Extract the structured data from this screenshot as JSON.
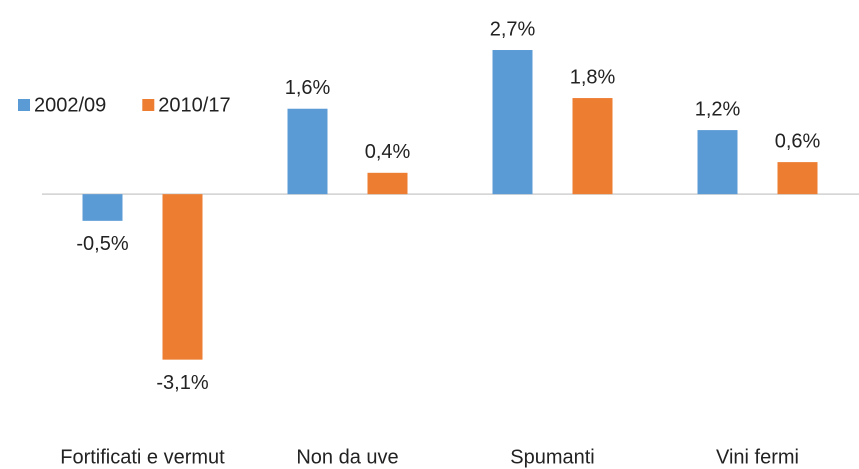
{
  "chart_data": {
    "type": "bar",
    "categories": [
      "Fortificati e vermut",
      "Non da uve",
      "Spumanti",
      "Vini fermi"
    ],
    "series": [
      {
        "name": "2002/09",
        "color": "#5b9bd5",
        "values": [
          -0.5,
          1.6,
          2.7,
          1.2
        ],
        "value_labels": [
          "-0,5%",
          "1,6%",
          "2,7%",
          "1,2%"
        ]
      },
      {
        "name": "2010/17",
        "color": "#ed7d31",
        "values": [
          -3.1,
          0.4,
          1.8,
          0.6
        ],
        "value_labels": [
          "-3,1%",
          "0,4%",
          "1,8%",
          "0,6%"
        ]
      }
    ],
    "ylim": [
      -3.5,
      3
    ],
    "legend": "top-left"
  }
}
